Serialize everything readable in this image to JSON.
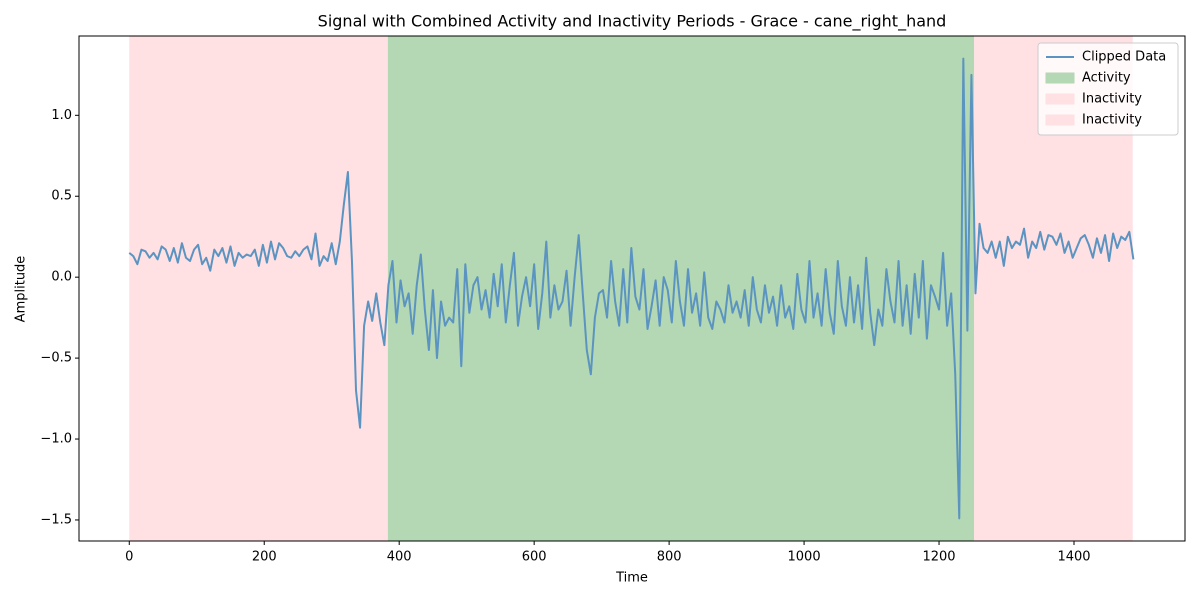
{
  "chart_data": {
    "type": "line",
    "title": "Signal with Combined Activity and Inactivity Periods - Grace - cane_right_hand",
    "xlabel": "Time",
    "ylabel": "Amplitude",
    "x": [
      0,
      6,
      12,
      18,
      24,
      30,
      36,
      42,
      48,
      54,
      60,
      66,
      72,
      78,
      84,
      90,
      96,
      102,
      108,
      114,
      120,
      126,
      132,
      138,
      144,
      150,
      156,
      162,
      168,
      174,
      180,
      186,
      192,
      198,
      204,
      210,
      216,
      222,
      228,
      234,
      240,
      246,
      252,
      258,
      264,
      270,
      276,
      282,
      288,
      294,
      300,
      306,
      312,
      318,
      324,
      330,
      336,
      342,
      348,
      354,
      360,
      366,
      372,
      378,
      384,
      390,
      396,
      402,
      408,
      414,
      420,
      426,
      432,
      438,
      444,
      450,
      456,
      462,
      468,
      474,
      480,
      486,
      492,
      498,
      504,
      510,
      516,
      522,
      528,
      534,
      540,
      546,
      552,
      558,
      564,
      570,
      576,
      582,
      588,
      594,
      600,
      606,
      612,
      618,
      624,
      630,
      636,
      642,
      648,
      654,
      660,
      666,
      672,
      678,
      684,
      690,
      696,
      702,
      708,
      714,
      720,
      726,
      732,
      738,
      744,
      750,
      756,
      762,
      768,
      774,
      780,
      786,
      792,
      798,
      804,
      810,
      816,
      822,
      828,
      834,
      840,
      846,
      852,
      858,
      864,
      870,
      876,
      882,
      888,
      894,
      900,
      906,
      912,
      918,
      924,
      930,
      936,
      942,
      948,
      954,
      960,
      966,
      972,
      978,
      984,
      990,
      996,
      1002,
      1008,
      1014,
      1020,
      1026,
      1032,
      1038,
      1044,
      1050,
      1056,
      1062,
      1068,
      1074,
      1080,
      1086,
      1092,
      1098,
      1104,
      1110,
      1116,
      1122,
      1128,
      1134,
      1140,
      1146,
      1152,
      1158,
      1164,
      1170,
      1176,
      1182,
      1188,
      1194,
      1200,
      1206,
      1212,
      1218,
      1224,
      1230,
      1236,
      1242,
      1248,
      1254,
      1260,
      1266,
      1272,
      1278,
      1284,
      1290,
      1296,
      1302,
      1308,
      1314,
      1320,
      1326,
      1332,
      1338,
      1344,
      1350,
      1356,
      1362,
      1368,
      1374,
      1380,
      1386,
      1392,
      1398,
      1404,
      1410,
      1416,
      1422,
      1428,
      1434,
      1440,
      1446,
      1452,
      1458,
      1464,
      1470,
      1476,
      1482,
      1488
    ],
    "series": [
      {
        "name": "Clipped Data",
        "color": "#5b94c1",
        "values": [
          0.15,
          0.13,
          0.08,
          0.17,
          0.16,
          0.12,
          0.15,
          0.11,
          0.19,
          0.17,
          0.1,
          0.18,
          0.09,
          0.21,
          0.12,
          0.1,
          0.17,
          0.2,
          0.08,
          0.12,
          0.04,
          0.17,
          0.13,
          0.18,
          0.09,
          0.19,
          0.07,
          0.15,
          0.12,
          0.14,
          0.13,
          0.17,
          0.07,
          0.2,
          0.09,
          0.22,
          0.11,
          0.21,
          0.18,
          0.13,
          0.12,
          0.16,
          0.13,
          0.17,
          0.19,
          0.11,
          0.27,
          0.07,
          0.13,
          0.1,
          0.21,
          0.08,
          0.22,
          0.45,
          0.65,
          0.1,
          -0.7,
          -0.93,
          -0.3,
          -0.15,
          -0.27,
          -0.1,
          -0.28,
          -0.42,
          -0.05,
          0.1,
          -0.28,
          -0.02,
          -0.18,
          -0.1,
          -0.35,
          -0.05,
          0.14,
          -0.2,
          -0.45,
          -0.08,
          -0.5,
          -0.15,
          -0.3,
          -0.25,
          -0.28,
          0.05,
          -0.55,
          0.08,
          -0.22,
          -0.05,
          0.0,
          -0.2,
          -0.08,
          -0.25,
          0.02,
          -0.18,
          0.08,
          -0.28,
          -0.05,
          0.15,
          -0.3,
          -0.12,
          0.0,
          -0.18,
          0.08,
          -0.32,
          -0.1,
          0.22,
          -0.25,
          -0.05,
          -0.2,
          -0.15,
          0.04,
          -0.3,
          0.0,
          0.26,
          -0.1,
          -0.45,
          -0.6,
          -0.25,
          -0.1,
          -0.08,
          -0.25,
          0.1,
          -0.15,
          -0.3,
          0.05,
          -0.28,
          0.18,
          -0.12,
          -0.2,
          0.05,
          -0.32,
          -0.18,
          -0.02,
          -0.3,
          0.0,
          -0.08,
          -0.28,
          0.1,
          -0.15,
          -0.3,
          0.05,
          -0.22,
          -0.1,
          -0.3,
          0.03,
          -0.25,
          -0.32,
          -0.15,
          -0.2,
          -0.28,
          -0.05,
          -0.22,
          -0.15,
          -0.25,
          -0.08,
          -0.3,
          0.0,
          -0.2,
          -0.28,
          -0.05,
          -0.22,
          -0.12,
          -0.3,
          -0.05,
          -0.25,
          -0.18,
          -0.32,
          0.02,
          -0.2,
          -0.28,
          0.1,
          -0.25,
          -0.1,
          -0.3,
          0.05,
          -0.22,
          -0.35,
          0.1,
          -0.18,
          -0.3,
          0.0,
          -0.28,
          -0.05,
          -0.32,
          0.12,
          -0.22,
          -0.42,
          -0.2,
          -0.3,
          0.05,
          -0.15,
          -0.28,
          0.1,
          -0.3,
          -0.05,
          -0.35,
          0.02,
          -0.25,
          0.1,
          -0.38,
          -0.05,
          -0.12,
          -0.2,
          0.15,
          -0.3,
          -0.1,
          -0.6,
          -1.49,
          1.35,
          -0.33,
          1.25,
          -0.1,
          0.33,
          0.18,
          0.15,
          0.22,
          0.12,
          0.22,
          0.07,
          0.25,
          0.18,
          0.22,
          0.2,
          0.3,
          0.12,
          0.22,
          0.18,
          0.28,
          0.17,
          0.26,
          0.25,
          0.2,
          0.27,
          0.15,
          0.22,
          0.12,
          0.18,
          0.24,
          0.26,
          0.2,
          0.12,
          0.24,
          0.15,
          0.26,
          0.1,
          0.27,
          0.18,
          0.25,
          0.23,
          0.28,
          0.11
        ]
      }
    ],
    "spans": [
      {
        "name": "Activity",
        "start": 383,
        "end": 1252,
        "color": "#b3d8b3"
      },
      {
        "name": "Inactivity",
        "start": 0,
        "end": 383,
        "color": "#ffe0e3"
      },
      {
        "name": "Inactivity",
        "start": 1252,
        "end": 1487,
        "color": "#ffe0e3"
      }
    ],
    "xlim": [
      -74.5,
      1564.5
    ],
    "ylim": [
      -1.63,
      1.49
    ],
    "xticks": [
      0,
      200,
      400,
      600,
      800,
      1000,
      1200,
      1400
    ],
    "yticks": [
      {
        "value": -1.5,
        "label": "−1.5"
      },
      {
        "value": -1,
        "label": "−1.0"
      },
      {
        "value": -0.5,
        "label": "−0.5"
      },
      {
        "value": 0,
        "label": "0.0"
      },
      0.5,
      {
        "value": 1,
        "label": "1.0"
      }
    ],
    "legend": "upper right"
  }
}
